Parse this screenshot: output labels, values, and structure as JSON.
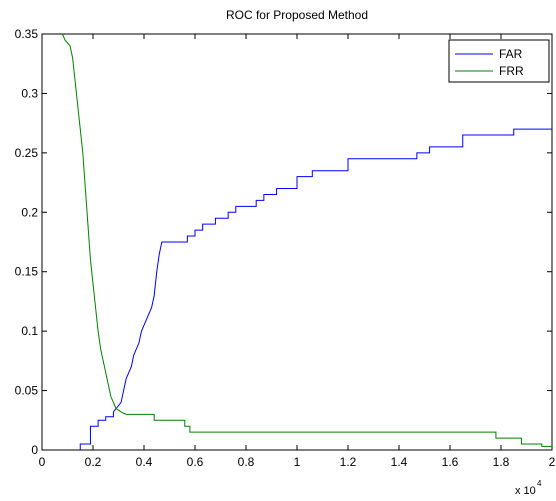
{
  "chart_data": {
    "type": "line",
    "title": "ROC for Proposed Method",
    "xlabel": "",
    "ylabel": "",
    "xlim": [
      0,
      2
    ],
    "ylim": [
      0,
      0.35
    ],
    "x_multiplier": "x 10",
    "x_multiplier_exponent": "4",
    "xticks": [
      "0",
      "0.2",
      "0.4",
      "0.6",
      "0.8",
      "1",
      "1.2",
      "1.4",
      "1.6",
      "1.8",
      "2"
    ],
    "yticks": [
      "0",
      "0.05",
      "0.1",
      "0.15",
      "0.2",
      "0.25",
      "0.3",
      "0.35"
    ],
    "grid": false,
    "legend_position": "top-right",
    "series": [
      {
        "name": "FAR",
        "color": "#0000ff",
        "points": [
          [
            0.15,
            0
          ],
          [
            0.15,
            0.005
          ],
          [
            0.19,
            0.005
          ],
          [
            0.19,
            0.02
          ],
          [
            0.22,
            0.02
          ],
          [
            0.22,
            0.025
          ],
          [
            0.25,
            0.025
          ],
          [
            0.25,
            0.028
          ],
          [
            0.28,
            0.028
          ],
          [
            0.28,
            0.032
          ],
          [
            0.31,
            0.04
          ],
          [
            0.32,
            0.05
          ],
          [
            0.33,
            0.06
          ],
          [
            0.35,
            0.07
          ],
          [
            0.36,
            0.08
          ],
          [
            0.38,
            0.09
          ],
          [
            0.39,
            0.1
          ],
          [
            0.41,
            0.11
          ],
          [
            0.43,
            0.12
          ],
          [
            0.44,
            0.13
          ],
          [
            0.45,
            0.15
          ],
          [
            0.46,
            0.165
          ],
          [
            0.47,
            0.175
          ],
          [
            0.57,
            0.175
          ],
          [
            0.57,
            0.18
          ],
          [
            0.6,
            0.18
          ],
          [
            0.6,
            0.185
          ],
          [
            0.63,
            0.185
          ],
          [
            0.63,
            0.19
          ],
          [
            0.68,
            0.19
          ],
          [
            0.68,
            0.195
          ],
          [
            0.73,
            0.195
          ],
          [
            0.73,
            0.2
          ],
          [
            0.76,
            0.2
          ],
          [
            0.76,
            0.205
          ],
          [
            0.84,
            0.205
          ],
          [
            0.84,
            0.21
          ],
          [
            0.87,
            0.21
          ],
          [
            0.87,
            0.215
          ],
          [
            0.92,
            0.215
          ],
          [
            0.92,
            0.22
          ],
          [
            1.0,
            0.22
          ],
          [
            1.0,
            0.23
          ],
          [
            1.06,
            0.23
          ],
          [
            1.06,
            0.235
          ],
          [
            1.2,
            0.235
          ],
          [
            1.2,
            0.245
          ],
          [
            1.47,
            0.245
          ],
          [
            1.47,
            0.25
          ],
          [
            1.52,
            0.25
          ],
          [
            1.52,
            0.255
          ],
          [
            1.65,
            0.255
          ],
          [
            1.65,
            0.265
          ],
          [
            1.85,
            0.265
          ],
          [
            1.85,
            0.27
          ],
          [
            2.0,
            0.27
          ]
        ]
      },
      {
        "name": "FRR",
        "color": "#008000",
        "points": [
          [
            0.08,
            0.35
          ],
          [
            0.09,
            0.345
          ],
          [
            0.11,
            0.34
          ],
          [
            0.12,
            0.33
          ],
          [
            0.13,
            0.31
          ],
          [
            0.14,
            0.29
          ],
          [
            0.15,
            0.27
          ],
          [
            0.16,
            0.25
          ],
          [
            0.17,
            0.22
          ],
          [
            0.18,
            0.19
          ],
          [
            0.19,
            0.16
          ],
          [
            0.2,
            0.14
          ],
          [
            0.21,
            0.12
          ],
          [
            0.22,
            0.1
          ],
          [
            0.23,
            0.085
          ],
          [
            0.24,
            0.075
          ],
          [
            0.25,
            0.065
          ],
          [
            0.26,
            0.055
          ],
          [
            0.27,
            0.045
          ],
          [
            0.28,
            0.04
          ],
          [
            0.29,
            0.035
          ],
          [
            0.31,
            0.032
          ],
          [
            0.33,
            0.03
          ],
          [
            0.44,
            0.03
          ],
          [
            0.44,
            0.025
          ],
          [
            0.56,
            0.025
          ],
          [
            0.56,
            0.02
          ],
          [
            0.58,
            0.02
          ],
          [
            0.58,
            0.015
          ],
          [
            1.78,
            0.015
          ],
          [
            1.78,
            0.01
          ],
          [
            1.88,
            0.01
          ],
          [
            1.88,
            0.005
          ],
          [
            1.96,
            0.005
          ],
          [
            1.96,
            0.003
          ],
          [
            2.0,
            0.003
          ]
        ]
      }
    ]
  }
}
